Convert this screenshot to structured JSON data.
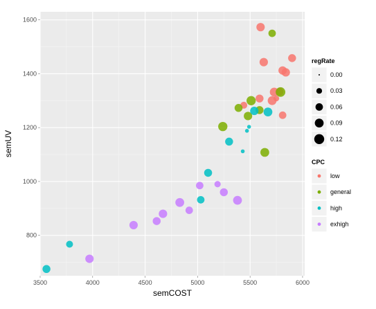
{
  "chart_data": {
    "type": "scatter",
    "xlabel": "semCOST",
    "ylabel": "semUV",
    "xlim": [
      3500,
      6020
    ],
    "ylim": [
      650,
      1630
    ],
    "x_ticks": [
      3500,
      4000,
      4500,
      5000,
      5500,
      6000
    ],
    "x_tick_labels": [
      "3500",
      "4000",
      "4500",
      "5000",
      "5500",
      "6000"
    ],
    "y_ticks": [
      800,
      1000,
      1200,
      1400,
      1600
    ],
    "y_tick_labels": [
      "800",
      "1000",
      "1200",
      "1400",
      "1600"
    ],
    "grid": true,
    "legend_position": "right",
    "size_legend": {
      "title": "regRate",
      "entries": [
        {
          "label": "0.00",
          "value": 0.0
        },
        {
          "label": "0.03",
          "value": 0.03
        },
        {
          "label": "0.06",
          "value": 0.06
        },
        {
          "label": "0.09",
          "value": 0.09
        },
        {
          "label": "0.12",
          "value": 0.12
        }
      ]
    },
    "color_legend": {
      "title": "CPC",
      "entries": [
        {
          "label": "low",
          "color": "#F8766D"
        },
        {
          "label": "general",
          "color": "#7CAE00"
        },
        {
          "label": "high",
          "color": "#00BFC4"
        },
        {
          "label": "exhigh",
          "color": "#C77CFF"
        }
      ]
    },
    "series": [
      {
        "name": "low",
        "color": "#F8766D",
        "points": [
          {
            "x": 5600,
            "y": 1573,
            "r": 0.08
          },
          {
            "x": 5630,
            "y": 1443,
            "r": 0.08
          },
          {
            "x": 5900,
            "y": 1458,
            "r": 0.07
          },
          {
            "x": 5810,
            "y": 1412,
            "r": 0.08
          },
          {
            "x": 5840,
            "y": 1405,
            "r": 0.08
          },
          {
            "x": 5730,
            "y": 1332,
            "r": 0.09
          },
          {
            "x": 5780,
            "y": 1333,
            "r": 0.07
          },
          {
            "x": 5590,
            "y": 1308,
            "r": 0.07
          },
          {
            "x": 5710,
            "y": 1300,
            "r": 0.09
          },
          {
            "x": 5750,
            "y": 1308,
            "r": 0.03
          },
          {
            "x": 5440,
            "y": 1283,
            "r": 0.05
          },
          {
            "x": 5810,
            "y": 1246,
            "r": 0.06
          }
        ]
      },
      {
        "name": "general",
        "color": "#7CAE00",
        "points": [
          {
            "x": 5710,
            "y": 1550,
            "r": 0.06
          },
          {
            "x": 5790,
            "y": 1332,
            "r": 0.11
          },
          {
            "x": 5510,
            "y": 1300,
            "r": 0.1
          },
          {
            "x": 5390,
            "y": 1273,
            "r": 0.07
          },
          {
            "x": 5590,
            "y": 1265,
            "r": 0.07
          },
          {
            "x": 5480,
            "y": 1243,
            "r": 0.08
          },
          {
            "x": 5240,
            "y": 1204,
            "r": 0.1
          },
          {
            "x": 5640,
            "y": 1108,
            "r": 0.09
          }
        ]
      },
      {
        "name": "high",
        "color": "#00BFC4",
        "points": [
          {
            "x": 5670,
            "y": 1258,
            "r": 0.09
          },
          {
            "x": 5540,
            "y": 1262,
            "r": 0.08
          },
          {
            "x": 5300,
            "y": 1148,
            "r": 0.07
          },
          {
            "x": 5490,
            "y": 1203,
            "r": 0.01
          },
          {
            "x": 5470,
            "y": 1188,
            "r": 0.01
          },
          {
            "x": 5430,
            "y": 1112,
            "r": 0.01
          },
          {
            "x": 5100,
            "y": 1032,
            "r": 0.07
          },
          {
            "x": 5030,
            "y": 932,
            "r": 0.06
          },
          {
            "x": 3780,
            "y": 767,
            "r": 0.05
          },
          {
            "x": 3560,
            "y": 675,
            "r": 0.07
          }
        ]
      },
      {
        "name": "exhigh",
        "color": "#C77CFF",
        "points": [
          {
            "x": 5020,
            "y": 985,
            "r": 0.06
          },
          {
            "x": 5190,
            "y": 990,
            "r": 0.04
          },
          {
            "x": 5250,
            "y": 960,
            "r": 0.07
          },
          {
            "x": 5380,
            "y": 930,
            "r": 0.09
          },
          {
            "x": 4830,
            "y": 922,
            "r": 0.09
          },
          {
            "x": 4920,
            "y": 893,
            "r": 0.06
          },
          {
            "x": 4670,
            "y": 880,
            "r": 0.08
          },
          {
            "x": 4610,
            "y": 853,
            "r": 0.07
          },
          {
            "x": 4390,
            "y": 838,
            "r": 0.08
          },
          {
            "x": 3970,
            "y": 713,
            "r": 0.08
          }
        ]
      }
    ]
  }
}
